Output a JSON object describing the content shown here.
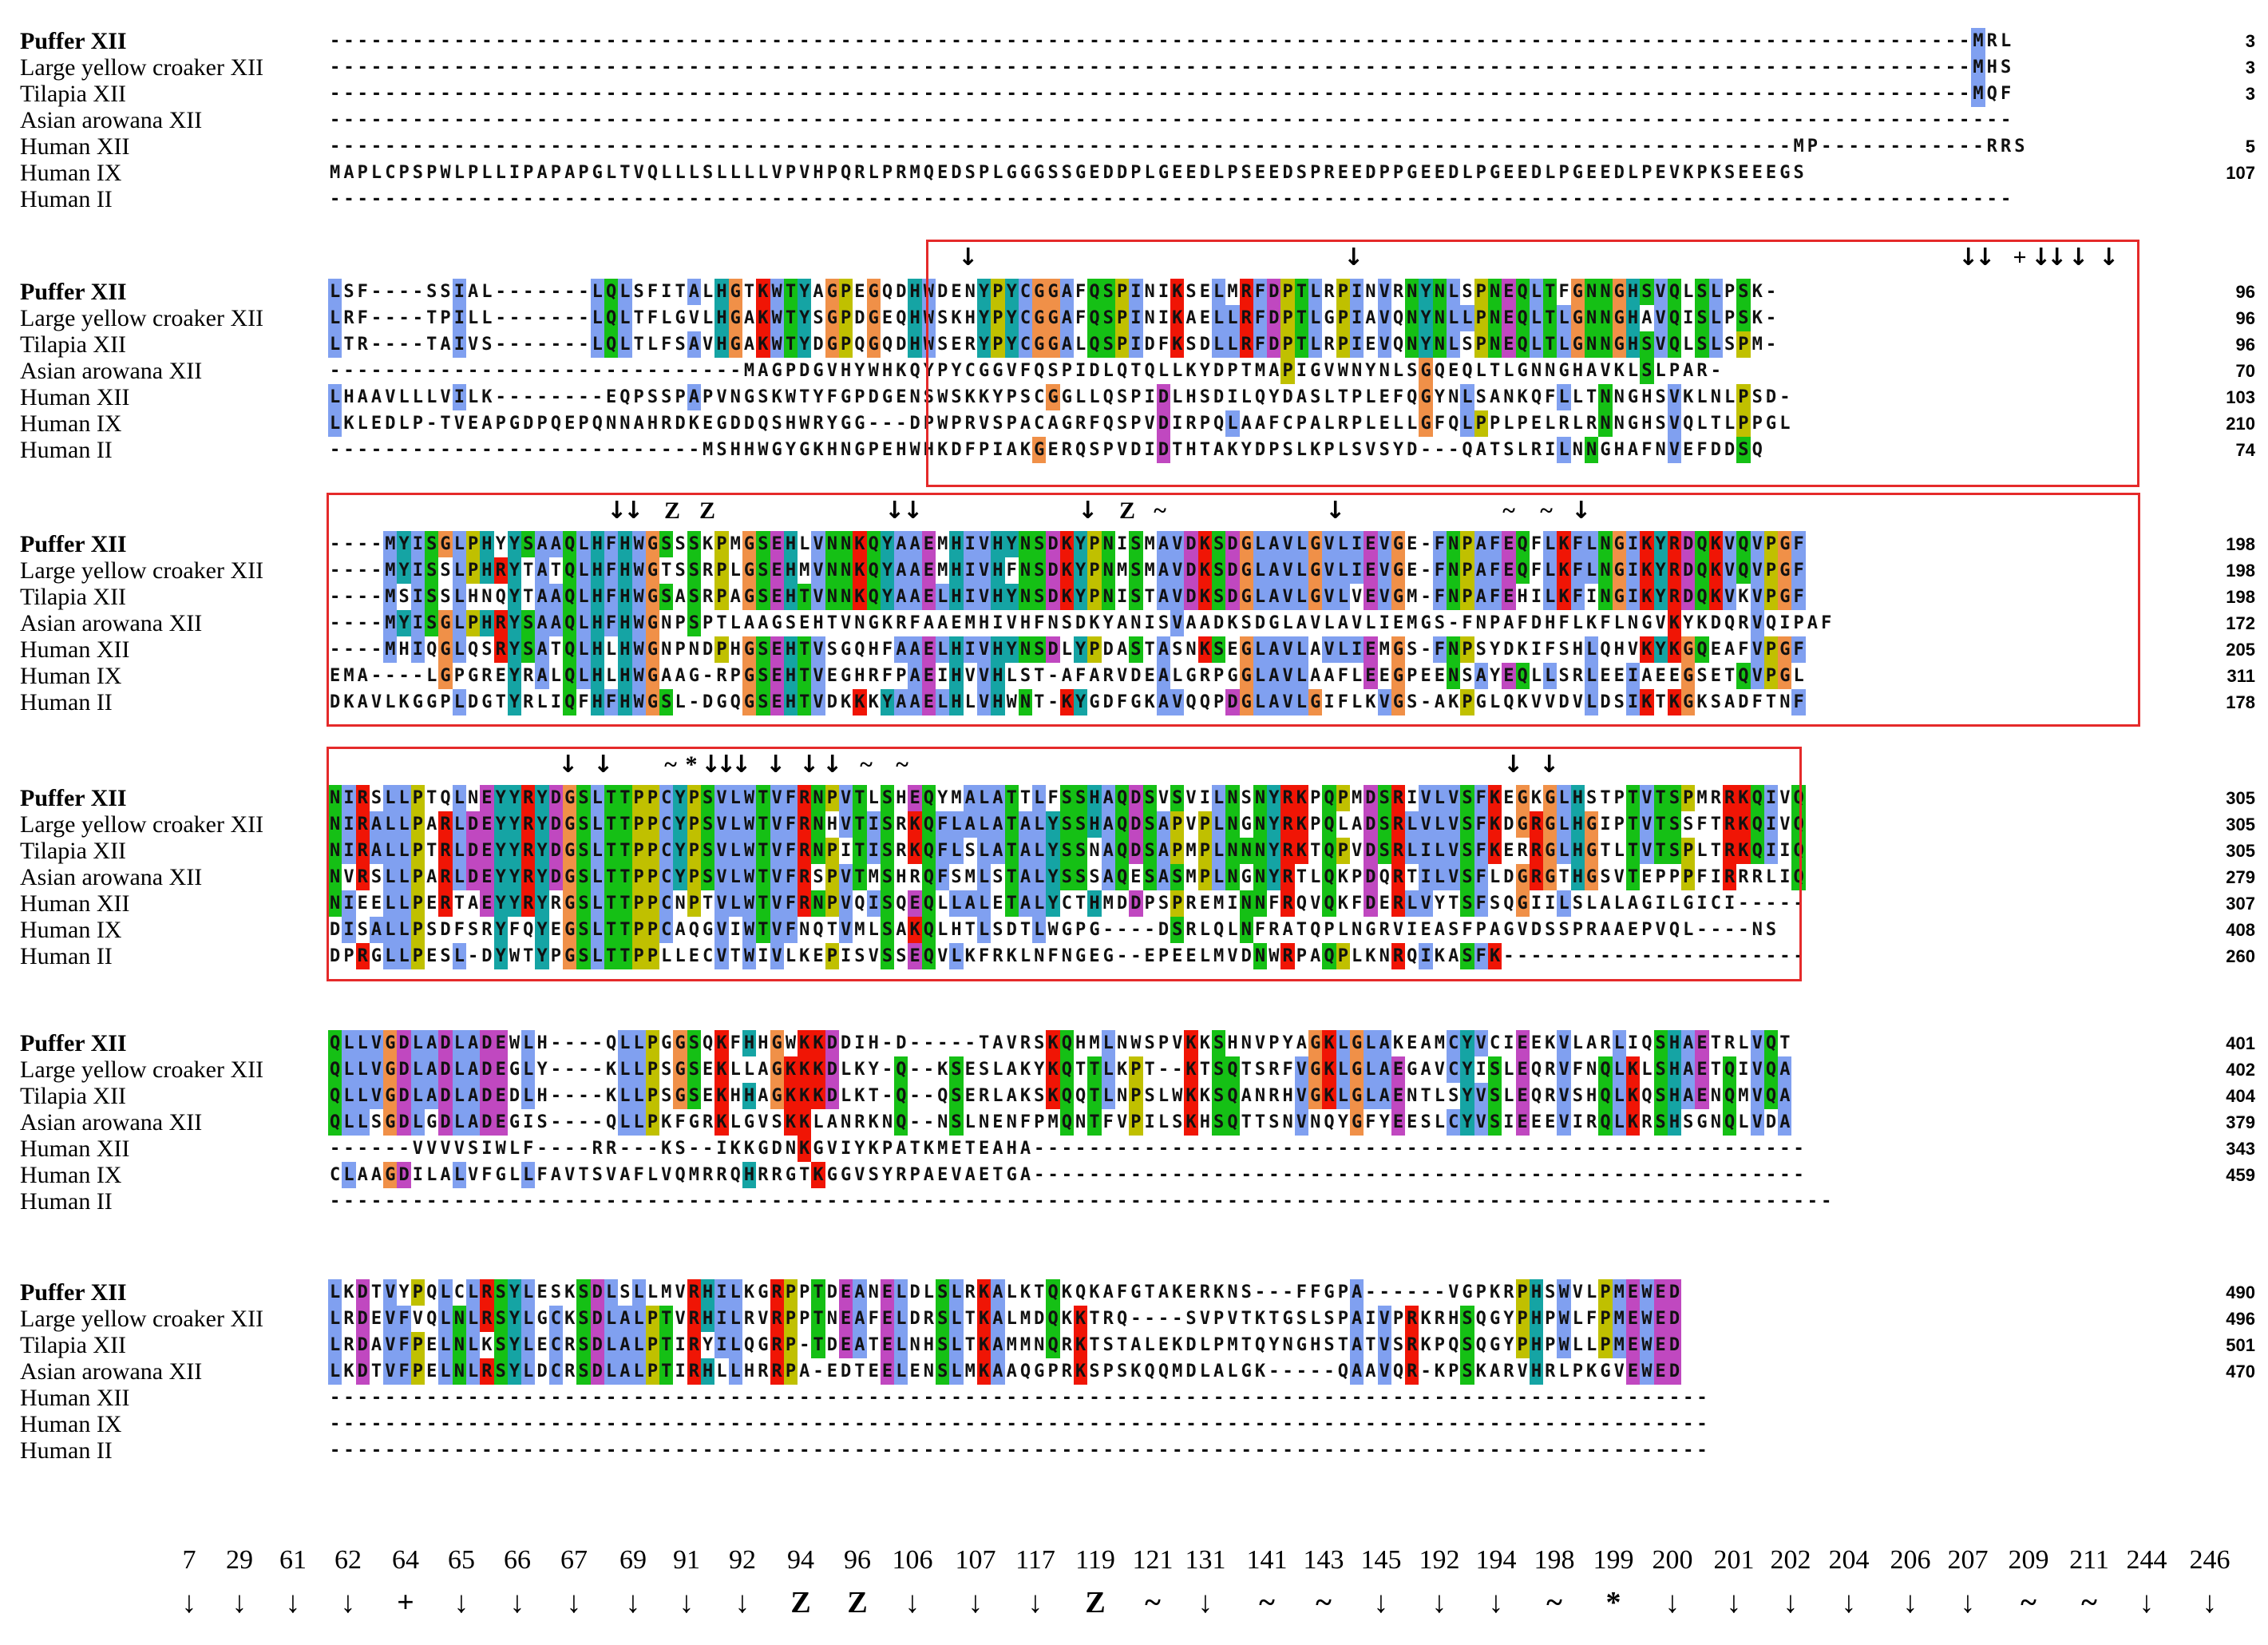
{
  "blocks": [
    {
      "names": [
        "Puffer XII",
        "Large yellow croaker XII",
        "Tilapia XII",
        "Asian arowana XII",
        "Human XII",
        "Human IX",
        "Human II"
      ],
      "sequences": [
        "-----------------------------------------------------------------------------------------------------------------------MRL",
        "-----------------------------------------------------------------------------------------------------------------------MHS",
        "-----------------------------------------------------------------------------------------------------------------------MQF",
        "--------------------------------------------------------------------------------------------------------------------------",
        "----------------------------------------------------------------------------------------------------------MP------------RRS",
        "MAPLCPSPWLPLLIPAPAPGLTVQLLLSLLLLVPVHPQRLPRMQEDSPLGGGSSGEDDPLGEEDLPSEEDSPREEDPPGEEDLPGEEDLPGEEDLPEVKPKSEEEGS",
        "--------------------------------------------------------------------------------------------------------------------------"
      ],
      "numbers": [
        "3",
        "3",
        "3",
        "",
        "5",
        "107",
        ""
      ]
    },
    {
      "names": [
        "Puffer XII",
        "Large yellow croaker XII",
        "Tilapia XII",
        "Asian arowana XII",
        "Human XII",
        "Human IX",
        "Human II"
      ],
      "sequences": [
        "LSF----SSIAL-------LQLSFITALHGTKWTYAGPEGQDHWDENYPYCGGAFQSPINIKSELMRFDPTLRPINVRNYNLSPNEQLTFGNNGHSVQLSLPSK-",
        "LRF----TPILL-------LQLTFLGVLHGAKWTYSGPDGEQHWSKHYPYCGGAFQSPINIKAELLRFDPTLGPIAVQNYNLLPNEQLTLGNNGHAVQISLPSK-",
        "LTR----TAIVS-------LQLTLFSAVHGAKWTYDGPQGQDHWSERYPYCGGALQSPIDFKSDLLRFDPTLRPIEVQNYNLSPNEQLTLGNNGHSVQLSLSPM-",
        "------------------------------MAGPDGVHYWHKQYPYCGGVFQSPIDLQTQLLKYDPTMAPIGVWNYNLSGQEQLTLGNNGHAVKLSLPAR-",
        "LHAAVLLLVILK--------EQPSSPAPVNGSKWTYFGPDGENSWSKKYPSCGGLLQSPIDLHSDILQYDASLTPLEFQGYNLSANKQFLLTNNGHSVKLNLPSD-",
        "LKLEDLP-TVEAPGDPQEPQNNAHRDKEGDDQSHWRYGG---DPWPRVSPACAGRFQSPVDIRPQLAAFCPALRPLELLGFQLPPLPELRLRNNGHSVQLTLPPGL",
        "---------------------------MSHHWGYGKHNGPEHWHKDFPIAKGERQSPVDIDTHTAKYDPSLKPLSVSYD---QATSLRILNNGHAFNVEFDDSQ"
      ],
      "numbers": [
        "96",
        "96",
        "96",
        "70",
        "103",
        "210",
        "74"
      ]
    },
    {
      "names": [
        "Puffer XII",
        "Large yellow croaker XII",
        "Tilapia XII",
        "Asian arowana XII",
        "Human XII",
        "Human IX",
        "Human II"
      ],
      "sequences": [
        "----MYISGLPHYYSAAQLHFHWGSSSKPMGSEHLVNNKQYAAEMHIVHYNSDKYPNISMAVDKSDGLAVLGVLIEVGE-FNPAFEQFLKFLNGIKYRDQKVQVPGF",
        "----MYISSLPHRYTATQLHFHWGTSSRPLGSEHMVNNKQYAAEMHIVHFNSDKYPNMSMAVDKSDGLAVLGVLIEVGE-FNPAFEQFLKFLNGIKYRDQKVQVPGF",
        "----MSISSLHNQYTAAQLHFHWGSASRPAGSEHTVNNKQYAAELHIVHYNSDKYPNISTAVDKSDGLAVLGVLVEVGM-FNPAFEHILKFINGIKYRDQKVKVPGF",
        "----MYISGLPHRYSAAQLHFHWGNPSPTLAAGSEHTVNGKRFAAEMHIVHFNSDKYANISVAADKSDGLAVLAVLIEMGS-FNPAFDHFLKFLNGVKYKDQRVQIPAF",
        "----MHIQGLQSRYSATQLHLHWGNPNDPHGSEHTVSGQHFAAELHIVHYNSDLYPDASTASNKSEGLAVLAVLIEMGS-FNPSYDKIFSHLQHVKYKGQEAFVPGF",
        "EMA----LGPGREYRALQLHLHWGAAG-RPGSEHTVEGHRFPAEIHVVHLST-AFARVDEALGRPGGLAVLAAFLEEGPEENSAYEQLLSRLEEIAEEGSETQVPGL",
        "DKAVLKGGPLDGTYRLIQFHFHWGSL-DGQGSEHTVDKKKYAAELHLVHWNT-KYGDFGKAVQQPDGLAVLGIFLKVGS-AKPGLQKVVDVLDSIKTKGKSADFTNF"
      ],
      "numbers": [
        "198",
        "198",
        "198",
        "172",
        "205",
        "311",
        "178"
      ]
    },
    {
      "names": [
        "Puffer XII",
        "Large yellow croaker XII",
        "Tilapia XII",
        "Asian arowana XII",
        "Human XII",
        "Human IX",
        "Human II"
      ],
      "sequences": [
        "NIRSLLPTQLNEYYRYDGSLTTPPCYPSVLWTVFRNPVTLSHEQYMALATTLFSSHAQDSVSVILNSNYRKPQPMDSRIVLVSFKEGKGLHSTPTVTSPMRRKQIVQ",
        "NIRALLPARLDEYYRYDGSLTTPPCYPSVLWTVFRNHVTISRKQFLALATALYSSHAQDSAPVPLNGNYRKPQLADSRLVLVSFKDGRGLHGIPTVTSSFTRKQIVQ",
        "NIRALLPTRLDEYYRYDGSLTTPPCYPSVLWTVFRNPITISRKQFLSLATALYSSNAQDSAPMPLNNNYRKTQPVDSRLILVSFKERRGLHGTLTVTSPLTRKQIIQ",
        "NVRSLLPARLDEYYRYDGSLTTPPCYPSVLWTVFRSPVTMSHRQFSMLSTALYSSSAQESASMPLNGNYRTLQKPDQRTILVSFLDGRGTHGSVTEPPPFIRRRLIQ",
        "NIEELLPERTAEYYRYRGSLTTPPCNPTVLWTVFRNPVQISQEQLLALETALYCTHMDDPSPREMINNFRQVQKFDERLVYTSFSQGIILSLALAGILGICI-----",
        "DISALLPSDFSRYFQYEGSLTTPPCAQGVIWTVFNQTVMLSAKQLHTLSDTLWGPG----DSRLQLNFRATQPLNGRVIEASFPAGVDSSPRAAEPVQL----NS",
        "DPRGLLPESL-DYWTYPGSLTTPPLLECVTWIVLKEPISVSSEQVLKFRKLNFNGEG--EPEELMVDNWRPAQPLKNRQIKASFK----------------------"
      ],
      "numbers": [
        "305",
        "305",
        "305",
        "279",
        "307",
        "408",
        "260"
      ]
    },
    {
      "names": [
        "Puffer XII",
        "Large yellow croaker XII",
        "Tilapia XII",
        "Asian arowana XII",
        "Human XII",
        "Human IX",
        "Human II"
      ],
      "sequences": [
        "QLLVGDLADLADEWLH----QLLPGGSQKFHHGWKKDDIH-D-----TAVRSKQHMLNWSPVKKSHNVPYAGKLGLAKEAMCYVCIEEKVLARLIQSHAETRLVQT",
        "QLLVGDLADLADEGLY----KLLPSGSEKLLAGKKKDLKY-Q--KSESLAKYKQTTLKPT--KTSQTSRFVGKLGLAEGAVCYISLEQRVFNQLKLSHAETQIVQA",
        "QLLVGDLADLADEDLH----KLLPSGSEKHHAGKKKDLKT-Q--QSERLAKSKQQTLNPSLWKKSQANRHVGKLGLAENTLSYVSLEQRVSHQLKQSHAENQMVQA",
        "QLLSGDLGDLADEGIS----QLLPKFGRKLGVSKKLANRKNQ--NSLNENFPMQNTFVPILSKHSQTTSNVNQYGFYEESLCYVSIEEEVIRQLKRSHSGNQLVDA",
        "------VVVVSIWLF----RR---KS--IKKGDNKGVIYKPATKMETEAHA--------------------------------------------------------",
        "CLAAGDILALVFGLLFAVTSVAFLVQMRRQHRRGTKGGVSYRPAEVAETGA--------------------------------------------------------",
        "-------------------------------------------------------------------------------------------------------------"
      ],
      "numbers": [
        "401",
        "402",
        "404",
        "379",
        "343",
        "459",
        ""
      ]
    },
    {
      "names": [
        "Puffer XII",
        "Large yellow croaker XII",
        "Tilapia XII",
        "Asian arowana XII",
        "Human XII",
        "Human IX",
        "Human II"
      ],
      "sequences": [
        "LKDTVYPQLCLRSYLESKSDLSLLMVRHILKGRPPTDEANELDLSLRKALKTQKQKAFGTAKERKNS---FFGPA------VGPKRPHSWVLPMEWED",
        "LRDEVFVQLNLRSYLGCKSDLALPTVRHILRVRPPTNEAFELDRSLTKALMDQKKTRQ----SVPVTKTGSLSPAIVPRKRHSQGYPHPWLFPMEWED",
        "LRDAVFPELNLKSYLECRSDLALPTIRYILQGRP-TDEATELNHSLTKAMMNQRKTSTALEKDLPMTQYNGHSTATVSRKPQSQGYPHPWLLPMEWED",
        "LKDTVFPELNLRSYLDCRSDLALPTIRHLLHRRPA-EDTEELENSLMKAAQGPRKSPSKQQMDLALGK-----QAAVQR-KPSKARVHRLPKGVEWED",
        "----------------------------------------------------------------------------------------------------",
        "----------------------------------------------------------------------------------------------------",
        "----------------------------------------------------------------------------------------------------"
      ],
      "numbers": [
        "490",
        "496",
        "501",
        "470",
        "",
        "",
        ""
      ]
    }
  ],
  "site_marks": {
    "block2": [
      "↓",
      "↓",
      "↓",
      "↓",
      "+",
      "↓",
      "↓",
      "↓",
      "↓"
    ],
    "block3": [
      "↓",
      "↓",
      "Z",
      "Z",
      "↓",
      "↓",
      "↓",
      "Z",
      "~",
      "↓",
      "~",
      "~",
      "↓"
    ],
    "block4": [
      "↓",
      "↓",
      "~",
      "*",
      "↓",
      "↓",
      "↓",
      "↓",
      "↓",
      "↓",
      "~",
      "~",
      "↓",
      "↓"
    ]
  },
  "legend": {
    "positions": [
      "7",
      "29",
      "61",
      "62",
      "64",
      "65",
      "66",
      "67",
      "69",
      "91",
      "92",
      "94",
      "96",
      "106",
      "107",
      "117",
      "119",
      "121",
      "131",
      "141",
      "143",
      "145",
      "192",
      "194",
      "198",
      "199",
      "200",
      "201",
      "202",
      "204",
      "206",
      "207",
      "209",
      "211",
      "244",
      "246"
    ],
    "symbols": [
      "↓",
      "↓",
      "↓",
      "↓",
      "+",
      "↓",
      "↓",
      "↓",
      "↓",
      "↓",
      "↓",
      "Z",
      "Z",
      "↓",
      "↓",
      "↓",
      "Z",
      "~",
      "↓",
      "~",
      "~",
      "↓",
      "↓",
      "↓",
      "~",
      "*",
      "↓",
      "↓",
      "↓",
      "↓",
      "↓",
      "↓",
      "~",
      "~",
      "↓",
      "↓"
    ]
  },
  "colors": {
    "box": "#e52a2a",
    "hydrophobic": "#80a0f0",
    "positive": "#f01505",
    "negative": "#c048c0",
    "polar": "#15c015",
    "glycine": "#f09048",
    "proline": "#c0c000",
    "aromatic": "#15a4a4"
  }
}
